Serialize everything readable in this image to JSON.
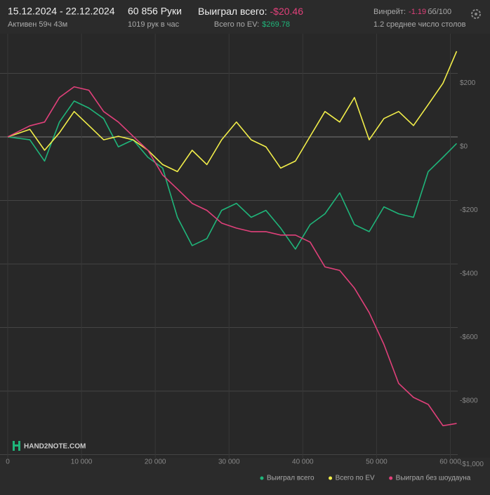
{
  "header": {
    "dates": "15.12.2024 - 22.12.2024",
    "active": "Активен 59ч 43м",
    "hands": "60 856 Руки",
    "rate": "1019 рук в час",
    "won_label": "Выиграл всего:",
    "won_value": "-$20.46",
    "ev_label": "Всего по EV:",
    "ev_value": "$269.78",
    "winrate_label": "Винрейт:",
    "winrate_value": "-1.19",
    "winrate_unit": "бб/100",
    "tables": "1.2 среднее число столов"
  },
  "logo": "HAND2NOTE.COM",
  "chart_data": {
    "type": "line",
    "x": [
      0,
      3000,
      5000,
      7000,
      9000,
      11000,
      13000,
      15000,
      17000,
      19000,
      21000,
      23000,
      25000,
      27000,
      29000,
      31000,
      33000,
      35000,
      37000,
      39000,
      41000,
      43000,
      45000,
      47000,
      49000,
      51000,
      53000,
      55000,
      57000,
      59000,
      60856
    ],
    "series": [
      {
        "name": "Выиграл всего",
        "color": "#1fb57a",
        "values": [
          0,
          -9,
          -76,
          47,
          113,
          91,
          58,
          -31,
          -9,
          -64,
          -98,
          -253,
          -342,
          -320,
          -231,
          -209,
          -253,
          -231,
          -287,
          -353,
          -276,
          -242,
          -176,
          -276,
          -298,
          -220,
          -242,
          -253,
          -109,
          -64,
          -20.46
        ]
      },
      {
        "name": "Всего по EV",
        "color": "#f2ee4a",
        "values": [
          0,
          24,
          -42,
          13,
          80,
          36,
          -9,
          2,
          -9,
          -42,
          -87,
          -109,
          -42,
          -87,
          -9,
          47,
          -9,
          -31,
          -98,
          -76,
          2,
          80,
          47,
          124,
          -9,
          58,
          80,
          36,
          102,
          169,
          269.78
        ]
      },
      {
        "name": "Выиграл без шоудауна",
        "color": "#e0407a",
        "values": [
          0,
          35,
          47,
          124,
          158,
          147,
          80,
          47,
          2,
          -42,
          -120,
          -164,
          -209,
          -231,
          -271,
          -287,
          -298,
          -298,
          -309,
          -309,
          -331,
          -409,
          -420,
          -476,
          -553,
          -653,
          -776,
          -820,
          -842,
          -909,
          -902
        ]
      }
    ],
    "xlim": [
      0,
      61000
    ],
    "ylim": [
      -1010,
      325
    ],
    "xticks": [
      0,
      {
        "value": 10000,
        "label": "10 000"
      },
      {
        "value": 20000,
        "label": "20 000"
      },
      {
        "value": 30000,
        "label": "30 000"
      },
      {
        "value": 40000,
        "label": "40 000"
      },
      {
        "value": 50000,
        "label": "50 000"
      },
      {
        "value": 60000,
        "label": "60 000"
      }
    ],
    "yticks": [
      {
        "value": 200,
        "label": "$200"
      },
      {
        "value": 0,
        "label": "$0"
      },
      {
        "value": -200,
        "label": "-$200"
      },
      {
        "value": -400,
        "label": "-$400"
      },
      {
        "value": -600,
        "label": "-$600"
      },
      {
        "value": -800,
        "label": "-$800"
      },
      {
        "value": -1000,
        "label": "-$1,000"
      }
    ],
    "grid": true,
    "legend": "bottom-right"
  }
}
